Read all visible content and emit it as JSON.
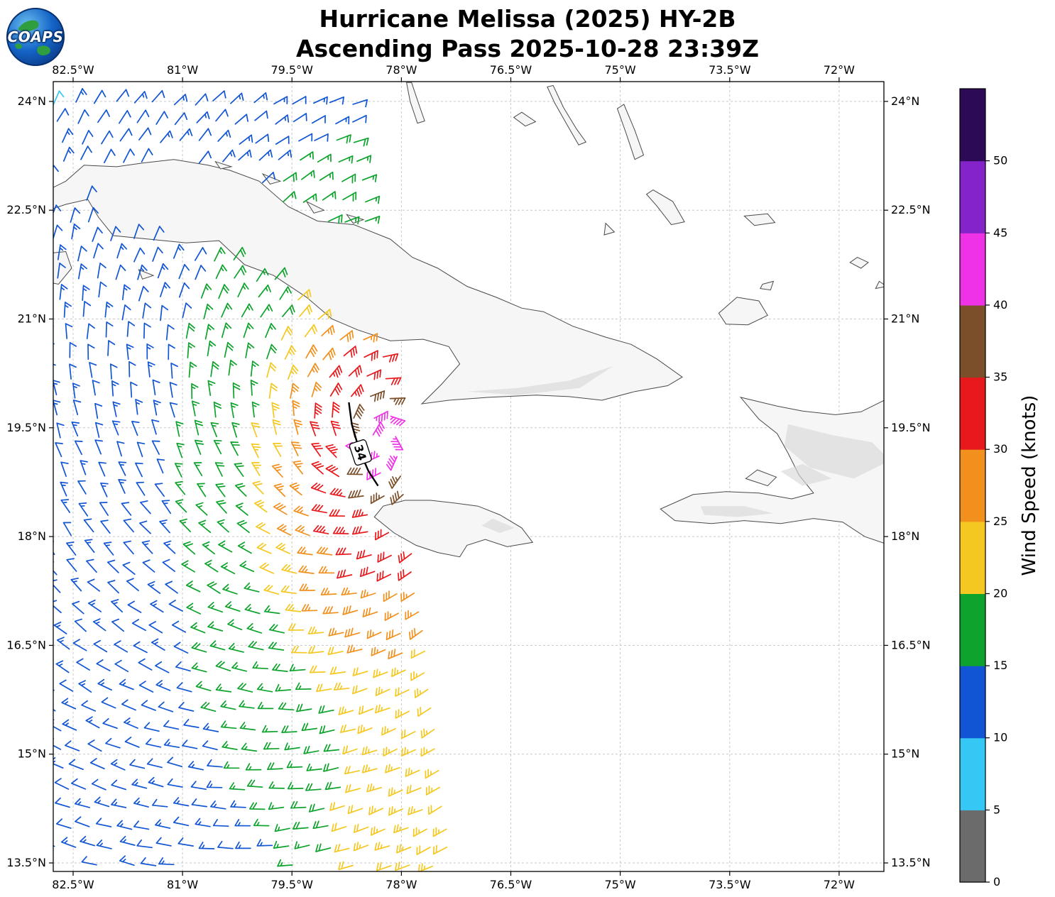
{
  "logo": {
    "text": "COAPS"
  },
  "title": {
    "line1": "Hurricane Melissa (2025) HY-2B",
    "line2": "Ascending Pass 2025-10-28 23:39Z"
  },
  "chart_data": {
    "type": "wind_barb_map",
    "storm": "Hurricane Melissa (2025)",
    "satellite": "HY-2B",
    "pass": "Ascending Pass",
    "pass_time": "2025-10-28 23:39Z",
    "map_extent": {
      "lon": [
        -82.772,
        -71.386
      ],
      "lat": [
        13.383,
        24.273
      ]
    },
    "axes": {
      "lon_tick_values": [
        -82.5,
        -81,
        -79.5,
        -78,
        -76.5,
        -75,
        -73.5,
        -72
      ],
      "lon_tick_labels": [
        "82.5°W",
        "81°W",
        "79.5°W",
        "78°W",
        "76.5°W",
        "75°W",
        "73.5°W",
        "72°W"
      ],
      "lat_tick_values": [
        24,
        22.5,
        21,
        19.5,
        18,
        16.5,
        15,
        13.5
      ],
      "lat_tick_labels": [
        "24°N",
        "22.5°N",
        "21°N",
        "19.5°N",
        "18°N",
        "16.5°N",
        "15°N",
        "13.5°N"
      ],
      "grid": "dashed"
    },
    "colorbar": {
      "label": "Wind Speed (knots)",
      "tick_values": [
        0,
        5,
        10,
        15,
        20,
        25,
        30,
        35,
        40,
        45,
        50
      ],
      "bin_kt": 5,
      "colors_low_to_high": [
        "#6b6b6b",
        "#35c8f5",
        "#1155d4",
        "#0da32c",
        "#f5c821",
        "#f2901e",
        "#e8191c",
        "#7a4f2a",
        "#f032e6",
        "#8423c9",
        "#2d0a55"
      ]
    },
    "contour": {
      "label": "34",
      "value_kt": 34,
      "points": [
        [
          -78.72,
          19.85
        ],
        [
          -78.68,
          19.55
        ],
        [
          -78.58,
          19.2
        ],
        [
          -78.45,
          18.9
        ],
        [
          -78.32,
          18.7
        ]
      ],
      "label_pos": [
        -78.56,
        19.16
      ],
      "label_rotation_deg": 72
    },
    "wind_field": {
      "center": {
        "lon": -78.35,
        "lat": 19.35
      },
      "rotation": "cyclonic_ccw",
      "inflow_deg": 18,
      "ellipse": {
        "west": 2.0,
        "east": 1.4,
        "south": 0.85,
        "north": 1.3
      },
      "profile": {
        "radii_deg": [
          0.55,
          0.85,
          1.8,
          2.6,
          3.3,
          5.5,
          10.5
        ],
        "speeds_kt": [
          43,
          37,
          32,
          27,
          22,
          17,
          12,
          8
        ]
      },
      "se_band": {
        "lat_max": 17.6,
        "taper": 1.2,
        "lon_line": -78.25,
        "speed": 23,
        "falloff": 5.5
      },
      "grid": {
        "spacing": 0.27,
        "lat_start": 13.45,
        "lat_end": 24.3,
        "lon_min": -82.95,
        "edge_lon_ref": -78.0,
        "edge_lat_ref": 19.5,
        "edge_slope": -0.13
      }
    },
    "coastlines": [
      {
        "name": "cuba",
        "mask": true,
        "points": [
          [
            -82.9,
            22.75
          ],
          [
            -82.6,
            22.9
          ],
          [
            -82.35,
            23.12
          ],
          [
            -81.9,
            23.1
          ],
          [
            -81.55,
            23.15
          ],
          [
            -81.12,
            23.2
          ],
          [
            -80.65,
            23.12
          ],
          [
            -80.35,
            23.05
          ],
          [
            -79.95,
            22.9
          ],
          [
            -79.55,
            22.55
          ],
          [
            -79.15,
            22.35
          ],
          [
            -78.65,
            22.3
          ],
          [
            -78.15,
            22.1
          ],
          [
            -77.85,
            21.85
          ],
          [
            -77.5,
            21.7
          ],
          [
            -77.1,
            21.45
          ],
          [
            -76.7,
            21.3
          ],
          [
            -76.35,
            21.15
          ],
          [
            -76.05,
            21.1
          ],
          [
            -75.65,
            20.9
          ],
          [
            -75.2,
            20.75
          ],
          [
            -74.85,
            20.65
          ],
          [
            -74.5,
            20.45
          ],
          [
            -74.15,
            20.2
          ],
          [
            -74.35,
            20.08
          ],
          [
            -74.8,
            20.0
          ],
          [
            -75.25,
            19.88
          ],
          [
            -75.7,
            19.93
          ],
          [
            -76.15,
            19.95
          ],
          [
            -76.8,
            19.92
          ],
          [
            -77.35,
            19.88
          ],
          [
            -77.72,
            19.83
          ],
          [
            -77.45,
            20.1
          ],
          [
            -77.2,
            20.38
          ],
          [
            -77.35,
            20.62
          ],
          [
            -77.7,
            20.72
          ],
          [
            -78.15,
            20.7
          ],
          [
            -78.6,
            20.85
          ],
          [
            -78.95,
            21.0
          ],
          [
            -79.3,
            21.3
          ],
          [
            -79.75,
            21.6
          ],
          [
            -80.15,
            21.75
          ],
          [
            -80.5,
            22.08
          ],
          [
            -80.95,
            22.05
          ],
          [
            -81.45,
            22.1
          ],
          [
            -81.95,
            22.15
          ],
          [
            -82.15,
            22.4
          ],
          [
            -82.3,
            22.65
          ],
          [
            -82.6,
            22.58
          ],
          [
            -82.9,
            22.48
          ]
        ]
      },
      {
        "name": "jamaica",
        "mask": true,
        "points": [
          [
            -78.37,
            18.27
          ],
          [
            -78.25,
            18.42
          ],
          [
            -77.95,
            18.5
          ],
          [
            -77.6,
            18.5
          ],
          [
            -77.25,
            18.46
          ],
          [
            -76.95,
            18.42
          ],
          [
            -76.65,
            18.3
          ],
          [
            -76.35,
            18.12
          ],
          [
            -76.2,
            17.92
          ],
          [
            -76.55,
            17.86
          ],
          [
            -76.85,
            17.96
          ],
          [
            -77.1,
            17.88
          ],
          [
            -77.2,
            17.72
          ],
          [
            -77.5,
            17.78
          ],
          [
            -77.8,
            17.88
          ],
          [
            -78.1,
            18.05
          ]
        ]
      },
      {
        "name": "hispaniola",
        "mask": true,
        "points": [
          [
            -71.3,
            19.92
          ],
          [
            -71.7,
            19.72
          ],
          [
            -72.05,
            19.68
          ],
          [
            -72.5,
            19.73
          ],
          [
            -72.85,
            19.8
          ],
          [
            -73.35,
            19.92
          ],
          [
            -73.1,
            19.62
          ],
          [
            -72.85,
            19.42
          ],
          [
            -72.7,
            19.15
          ],
          [
            -72.55,
            18.85
          ],
          [
            -72.35,
            18.6
          ],
          [
            -72.65,
            18.52
          ],
          [
            -73.1,
            18.6
          ],
          [
            -73.55,
            18.62
          ],
          [
            -74.0,
            18.58
          ],
          [
            -74.45,
            18.38
          ],
          [
            -74.25,
            18.22
          ],
          [
            -73.75,
            18.18
          ],
          [
            -73.3,
            18.22
          ],
          [
            -72.8,
            18.18
          ],
          [
            -72.35,
            18.25
          ],
          [
            -71.95,
            18.2
          ],
          [
            -71.65,
            18.0
          ],
          [
            -71.3,
            17.88
          ]
        ]
      },
      {
        "name": "gonave",
        "mask": true,
        "points": [
          [
            -73.12,
            18.92
          ],
          [
            -72.86,
            18.82
          ],
          [
            -72.98,
            18.7
          ],
          [
            -73.28,
            18.8
          ]
        ]
      },
      {
        "name": "great-inagua",
        "mask": false,
        "points": [
          [
            -73.65,
            21.08
          ],
          [
            -73.4,
            21.3
          ],
          [
            -73.1,
            21.25
          ],
          [
            -72.98,
            21.05
          ],
          [
            -73.25,
            20.92
          ],
          [
            -73.55,
            20.93
          ]
        ]
      },
      {
        "name": "little-inagua",
        "mask": false,
        "points": [
          [
            -73.05,
            21.48
          ],
          [
            -72.9,
            21.52
          ],
          [
            -72.94,
            21.4
          ],
          [
            -73.08,
            21.42
          ]
        ]
      },
      {
        "name": "isla-juventud",
        "mask": false,
        "points": [
          [
            -82.9,
            21.9
          ],
          [
            -82.6,
            21.93
          ],
          [
            -82.52,
            21.7
          ],
          [
            -82.7,
            21.48
          ],
          [
            -82.9,
            21.52
          ]
        ]
      },
      {
        "name": "cayo-largo",
        "mask": false,
        "points": [
          [
            -81.6,
            21.68
          ],
          [
            -81.4,
            21.6
          ],
          [
            -81.55,
            21.55
          ]
        ]
      },
      {
        "name": "long-island",
        "mask": false,
        "points": [
          [
            -75.92,
            24.22
          ],
          [
            -75.78,
            23.92
          ],
          [
            -75.6,
            23.62
          ],
          [
            -75.47,
            23.44
          ],
          [
            -75.57,
            23.4
          ],
          [
            -75.73,
            23.68
          ],
          [
            -75.9,
            23.98
          ],
          [
            -76.0,
            24.2
          ]
        ]
      },
      {
        "name": "exuma-chain",
        "mask": false,
        "points": [
          [
            -74.95,
            23.96
          ],
          [
            -74.8,
            23.6
          ],
          [
            -74.68,
            23.26
          ],
          [
            -74.8,
            23.2
          ],
          [
            -74.92,
            23.56
          ],
          [
            -75.04,
            23.9
          ]
        ]
      },
      {
        "name": "crooked-acklins",
        "mask": false,
        "points": [
          [
            -74.55,
            22.78
          ],
          [
            -74.28,
            22.62
          ],
          [
            -74.12,
            22.34
          ],
          [
            -74.3,
            22.3
          ],
          [
            -74.5,
            22.56
          ],
          [
            -74.64,
            22.72
          ]
        ]
      },
      {
        "name": "mayaguana",
        "mask": false,
        "points": [
          [
            -73.3,
            22.42
          ],
          [
            -72.98,
            22.45
          ],
          [
            -72.88,
            22.33
          ],
          [
            -73.16,
            22.29
          ]
        ]
      },
      {
        "name": "andros-sliver",
        "mask": false,
        "points": [
          [
            -77.86,
            24.26
          ],
          [
            -77.76,
            23.96
          ],
          [
            -77.68,
            23.73
          ],
          [
            -77.78,
            23.7
          ],
          [
            -77.88,
            24.0
          ],
          [
            -77.93,
            24.26
          ]
        ]
      },
      {
        "name": "exuma-cay",
        "mask": false,
        "points": [
          [
            -76.35,
            23.85
          ],
          [
            -76.16,
            23.72
          ],
          [
            -76.3,
            23.66
          ],
          [
            -76.46,
            23.78
          ]
        ]
      },
      {
        "name": "turks-1",
        "mask": false,
        "points": [
          [
            -71.75,
            21.85
          ],
          [
            -71.6,
            21.78
          ],
          [
            -71.7,
            21.7
          ],
          [
            -71.85,
            21.78
          ]
        ]
      },
      {
        "name": "turks-2",
        "mask": false,
        "points": [
          [
            -71.45,
            21.52
          ],
          [
            -71.35,
            21.45
          ],
          [
            -71.5,
            21.42
          ]
        ]
      },
      {
        "name": "n-cuba-cay-1",
        "mask": false,
        "points": [
          [
            -80.55,
            23.17
          ],
          [
            -80.33,
            23.1
          ],
          [
            -80.48,
            23.07
          ]
        ]
      },
      {
        "name": "n-cuba-cay-2",
        "mask": false,
        "points": [
          [
            -79.9,
            23.0
          ],
          [
            -79.66,
            22.9
          ],
          [
            -79.8,
            22.86
          ]
        ]
      },
      {
        "name": "n-cuba-cay-3",
        "mask": false,
        "points": [
          [
            -79.3,
            22.62
          ],
          [
            -79.06,
            22.5
          ],
          [
            -79.2,
            22.46
          ]
        ]
      },
      {
        "name": "n-cuba-cay-4",
        "mask": false,
        "points": [
          [
            -78.75,
            22.44
          ],
          [
            -78.52,
            22.37
          ],
          [
            -78.66,
            22.32
          ]
        ]
      },
      {
        "name": "ragged-cay",
        "mask": false,
        "points": [
          [
            -75.2,
            22.32
          ],
          [
            -75.08,
            22.2
          ],
          [
            -75.22,
            22.16
          ]
        ]
      }
    ],
    "terrain_patches": [
      {
        "name": "hispaniola-north",
        "points": [
          [
            -72.7,
            19.55
          ],
          [
            -72.1,
            19.4
          ],
          [
            -71.55,
            19.3
          ],
          [
            -71.3,
            19.05
          ],
          [
            -71.8,
            18.8
          ],
          [
            -72.4,
            18.95
          ],
          [
            -72.75,
            19.25
          ]
        ]
      },
      {
        "name": "hispaniola-south",
        "points": [
          [
            -73.9,
            18.42
          ],
          [
            -73.3,
            18.42
          ],
          [
            -72.9,
            18.32
          ],
          [
            -73.4,
            18.27
          ],
          [
            -73.85,
            18.3
          ]
        ]
      },
      {
        "name": "hispaniola-center",
        "points": [
          [
            -72.5,
            19.0
          ],
          [
            -72.1,
            18.8
          ],
          [
            -72.5,
            18.7
          ],
          [
            -72.8,
            18.9
          ]
        ]
      },
      {
        "name": "cuba-sierra-maestra",
        "points": [
          [
            -77.1,
            20.0
          ],
          [
            -76.4,
            20.05
          ],
          [
            -75.7,
            20.15
          ],
          [
            -75.1,
            20.35
          ],
          [
            -75.55,
            20.05
          ],
          [
            -76.4,
            19.95
          ]
        ]
      },
      {
        "name": "jamaica-blue-mtns",
        "points": [
          [
            -76.75,
            18.25
          ],
          [
            -76.45,
            18.12
          ],
          [
            -76.65,
            18.05
          ],
          [
            -76.9,
            18.15
          ]
        ]
      }
    ]
  }
}
